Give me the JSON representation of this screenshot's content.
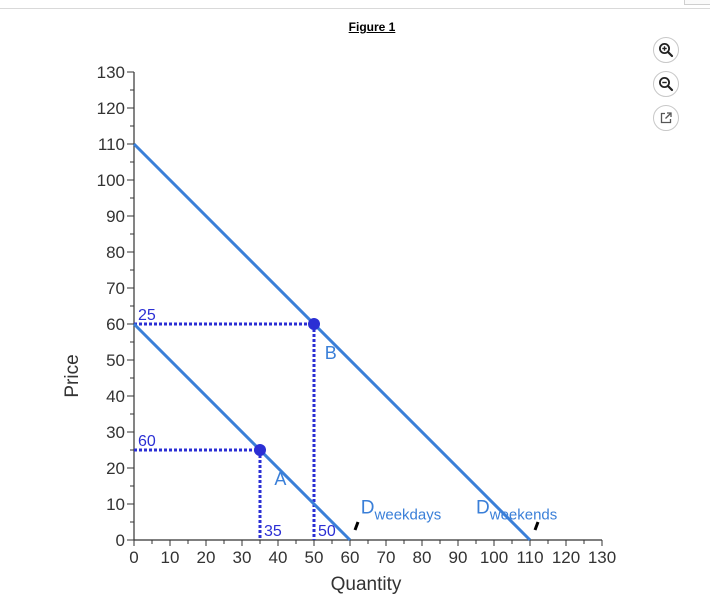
{
  "figure": {
    "title": "Figure 1"
  },
  "toolbar": [
    {
      "name": "zoom-in-button",
      "icon": "zoom-in-icon"
    },
    {
      "name": "zoom-out-button",
      "icon": "zoom-out-icon"
    },
    {
      "name": "popout-button",
      "icon": "external-link-icon"
    }
  ],
  "chart_data": {
    "type": "line",
    "title": "",
    "xlabel": "Quantity",
    "ylabel": "Price",
    "xlim": [
      0,
      130
    ],
    "ylim": [
      0,
      130
    ],
    "xticks": [
      0,
      10,
      20,
      30,
      40,
      50,
      60,
      70,
      80,
      90,
      100,
      110,
      120,
      130
    ],
    "yticks": [
      0,
      10,
      20,
      30,
      40,
      50,
      60,
      70,
      80,
      90,
      100,
      110,
      120,
      130
    ],
    "minor_tick_step": 5,
    "series": [
      {
        "name": "D",
        "subscript": "weekdays",
        "points": [
          [
            0,
            60
          ],
          [
            60,
            0
          ]
        ],
        "label_at": [
          63,
          9
        ],
        "color": "#3a7fd8"
      },
      {
        "name": "D",
        "subscript": "weekends",
        "points": [
          [
            0,
            110
          ],
          [
            110,
            0
          ]
        ],
        "label_at": [
          95,
          9
        ],
        "color": "#3a7fd8"
      }
    ],
    "points": [
      {
        "label": "A",
        "x": 35,
        "y": 25,
        "label_at": [
          39,
          17
        ]
      },
      {
        "label": "B",
        "x": 50,
        "y": 60,
        "label_at": [
          53,
          52
        ]
      }
    ],
    "guides": {
      "y_labels": [
        "60",
        "25"
      ],
      "x_labels": [
        "35",
        "50"
      ]
    },
    "label_color": "#3a7fd8",
    "guide_color": "#2b2fd4"
  }
}
